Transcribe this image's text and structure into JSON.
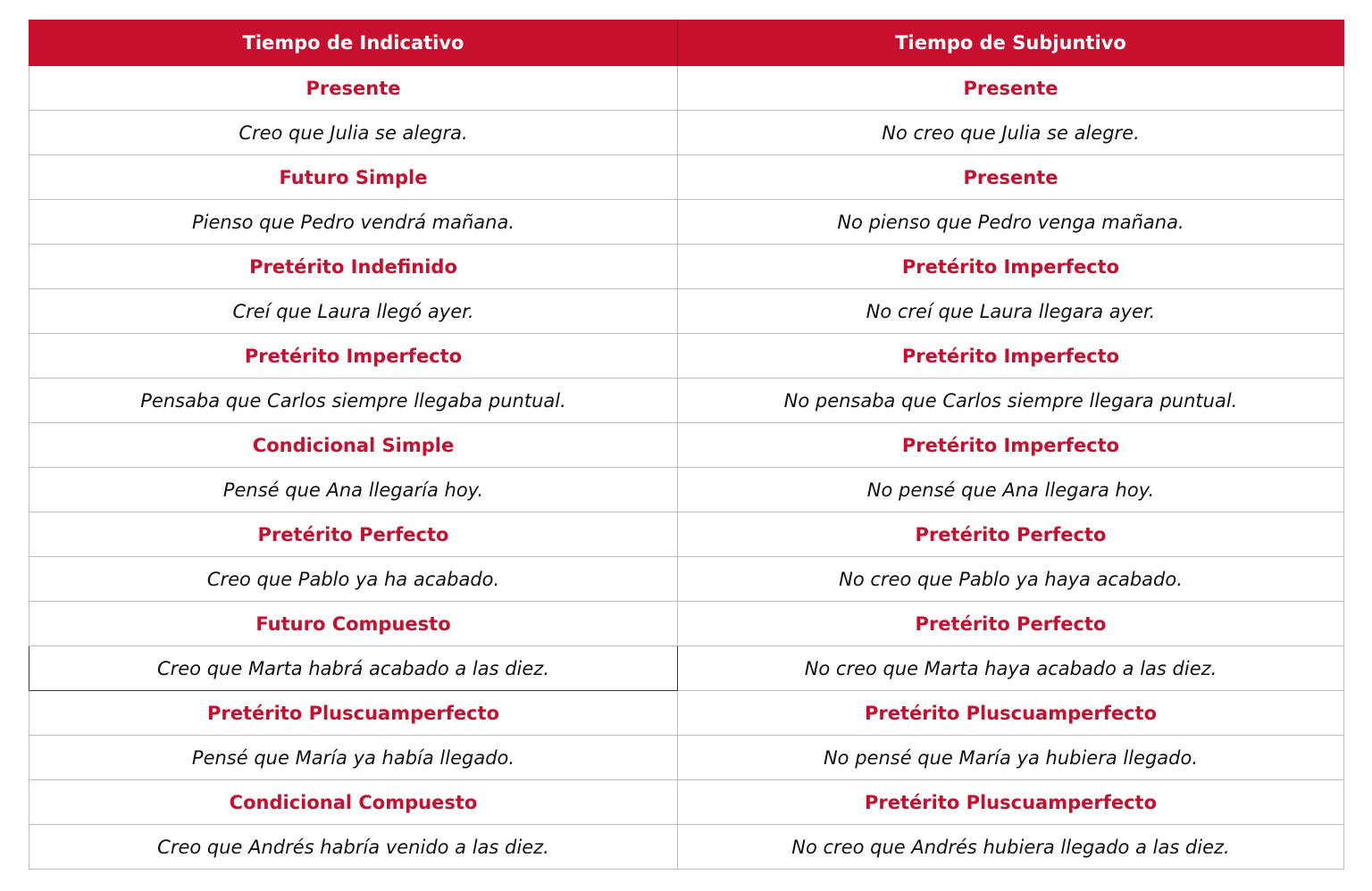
{
  "headers": [
    "Tiempo de Indicativo",
    "Tiempo de Subjuntivo"
  ],
  "rows": [
    {
      "indicativo": "Presente",
      "subjuntivo": "Presente"
    },
    {
      "indicativo": "Creo que Julia se alegra.",
      "subjuntivo": "No creo que Julia se alegre."
    },
    {
      "indicativo": "Futuro Simple",
      "subjuntivo": "Presente"
    },
    {
      "indicativo": "Pienso que Pedro vendrá mañana.",
      "subjuntivo": "No pienso que Pedro venga mañana."
    },
    {
      "indicativo": "Pretérito Indefinido",
      "subjuntivo": "Pretérito Imperfecto"
    },
    {
      "indicativo": "Creí que Laura llegó ayer.",
      "subjuntivo": "No creí que Laura llegara ayer."
    },
    {
      "indicativo": "Pretérito Imperfecto",
      "subjuntivo": "Pretérito Imperfecto"
    },
    {
      "indicativo": "Pensaba que Carlos siempre llegaba puntual.",
      "subjuntivo": "No pensaba que Carlos siempre llegara puntual."
    },
    {
      "indicativo": "Condicional Simple",
      "subjuntivo": "Pretérito Imperfecto"
    },
    {
      "indicativo": "Pensé que Ana llegaría hoy.",
      "subjuntivo": "No pensé que Ana llegara hoy."
    },
    {
      "indicativo": "Pretérito Perfecto",
      "subjuntivo": "Pretérito Perfecto"
    },
    {
      "indicativo": "Creo que Pablo ya ha acabado.",
      "subjuntivo": "No creo que Pablo ya haya acabado."
    },
    {
      "indicativo": "Futuro Compuesto",
      "subjuntivo": "Pretérito Perfecto"
    },
    {
      "indicativo": "Creo que Marta habrá acabado a las diez.",
      "subjuntivo": "No creo que Marta haya acabado a las diez."
    },
    {
      "indicativo": "Pretérito Pluscuamperfecto",
      "subjuntivo": "Pretérito Pluscuamperfecto"
    },
    {
      "indicativo": "Pensé que María ya había llegado.",
      "subjuntivo": "No pensé que María ya hubiera llegado."
    },
    {
      "indicativo": "Condicional Compuesto",
      "subjuntivo": "Pretérito Pluscuamperfecto"
    },
    {
      "indicativo": "Creo que Andrés habría venido a las diez.",
      "subjuntivo": "No creo que Andrés hubiera llegado a las diez."
    }
  ],
  "colors": {
    "accent": "#c8102e",
    "border": "#bdbdbd",
    "text": "#111111"
  }
}
